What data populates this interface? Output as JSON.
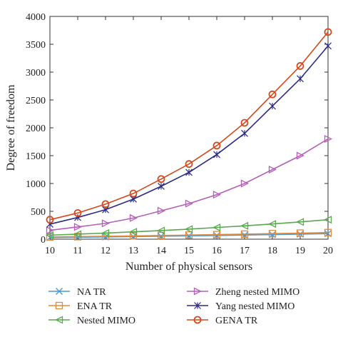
{
  "chart_data": {
    "type": "line",
    "xlabel": "Number of physical sensors",
    "ylabel": "Degree of freedom",
    "x": [
      10,
      11,
      12,
      13,
      14,
      15,
      16,
      17,
      18,
      19,
      20
    ],
    "xlim": [
      10,
      20
    ],
    "ylim": [
      0,
      4000
    ],
    "xticks": [
      "10",
      "11",
      "12",
      "13",
      "14",
      "15",
      "16",
      "17",
      "18",
      "19",
      "20"
    ],
    "yticks": [
      "0",
      "500",
      "1000",
      "1500",
      "2000",
      "2500",
      "3000",
      "3500",
      "4000"
    ],
    "grid": false,
    "legend_position": "bottom",
    "series": [
      {
        "name": "NA TR",
        "color": "#4a9ad6",
        "marker": "x",
        "values": [
          30,
          35,
          41,
          47,
          53,
          60,
          67,
          75,
          83,
          91,
          100
        ]
      },
      {
        "name": "ENA TR",
        "color": "#e08b3b",
        "marker": "square",
        "values": [
          40,
          46,
          52,
          59,
          66,
          74,
          82,
          91,
          100,
          109,
          119
        ]
      },
      {
        "name": "Nested MIMO",
        "color": "#58a84d",
        "marker": "triangle-left",
        "values": [
          72,
          90,
          110,
          132,
          155,
          180,
          210,
          240,
          273,
          310,
          350
        ]
      },
      {
        "name": "Zheng nested MIMO",
        "color": "#b45fb9",
        "marker": "triangle-right",
        "values": [
          160,
          220,
          285,
          380,
          510,
          640,
          800,
          1000,
          1250,
          1500,
          1800
        ]
      },
      {
        "name": "Yang nested MIMO",
        "color": "#2d2b83",
        "marker": "star",
        "values": [
          270,
          390,
          530,
          720,
          950,
          1200,
          1520,
          1900,
          2390,
          2880,
          3470
        ]
      },
      {
        "name": "GENA TR",
        "color": "#d44a1f",
        "marker": "circle",
        "values": [
          350,
          470,
          630,
          820,
          1080,
          1350,
          1680,
          2090,
          2600,
          3110,
          3720
        ]
      }
    ]
  }
}
